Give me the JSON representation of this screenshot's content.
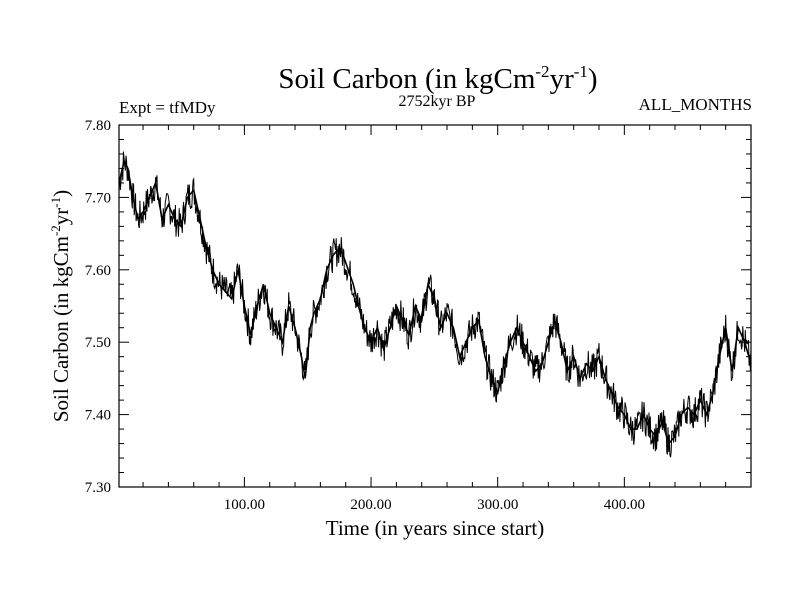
{
  "header": {
    "title_main": "Soil Carbon (in kgCm",
    "title_sup1": "-2",
    "title_mid": "yr",
    "title_sup2": "-1",
    "title_end": ")",
    "left_label": "Expt = tfMDy",
    "center_label": "2752kyr BP",
    "right_label": "ALL_MONTHS"
  },
  "chart_data": {
    "type": "line",
    "title": "Soil Carbon (in kgCm-2yr-1)",
    "xlabel": "Time (in years since start)",
    "ylabel": "Soil Carbon (in kgCm-2yr-1)",
    "ylabel_parts": {
      "main": "Soil Carbon (in kgCm",
      "sup1": "-2",
      "mid": "yr",
      "sup2": "-1",
      "end": ")"
    },
    "xlim": [
      1,
      500
    ],
    "ylim": [
      7.3,
      7.8
    ],
    "x_ticks": [
      100,
      200,
      300,
      400
    ],
    "x_tick_labels": [
      "100.00",
      "200.00",
      "300.00",
      "400.00"
    ],
    "y_ticks": [
      7.3,
      7.4,
      7.5,
      7.6,
      7.7,
      7.8
    ],
    "y_tick_labels": [
      "7.30",
      "7.40",
      "7.50",
      "7.60",
      "7.70",
      "7.80"
    ],
    "grid": false,
    "series": [
      {
        "color": "#000000",
        "x": [
          1,
          5,
          8,
          12,
          16,
          20,
          25,
          30,
          35,
          40,
          45,
          50,
          55,
          60,
          65,
          70,
          75,
          80,
          85,
          90,
          95,
          100,
          105,
          110,
          115,
          120,
          125,
          130,
          135,
          140,
          145,
          148,
          152,
          155,
          160,
          165,
          170,
          175,
          178,
          182,
          186,
          190,
          195,
          200,
          205,
          210,
          215,
          220,
          225,
          230,
          235,
          240,
          245,
          250,
          255,
          260,
          265,
          270,
          275,
          280,
          285,
          290,
          295,
          300,
          305,
          310,
          315,
          320,
          325,
          330,
          335,
          340,
          345,
          350,
          355,
          360,
          365,
          370,
          375,
          380,
          385,
          390,
          395,
          400,
          405,
          410,
          415,
          420,
          425,
          430,
          435,
          440,
          445,
          450,
          455,
          460,
          465,
          470,
          475,
          480,
          485,
          490,
          495,
          500
        ],
        "values": [
          7.72,
          7.75,
          7.74,
          7.7,
          7.67,
          7.68,
          7.7,
          7.72,
          7.67,
          7.69,
          7.67,
          7.66,
          7.7,
          7.71,
          7.67,
          7.63,
          7.6,
          7.58,
          7.57,
          7.56,
          7.6,
          7.55,
          7.51,
          7.55,
          7.58,
          7.54,
          7.52,
          7.5,
          7.55,
          7.52,
          7.48,
          7.45,
          7.52,
          7.54,
          7.56,
          7.6,
          7.62,
          7.63,
          7.62,
          7.6,
          7.58,
          7.55,
          7.52,
          7.5,
          7.52,
          7.49,
          7.52,
          7.55,
          7.53,
          7.51,
          7.55,
          7.53,
          7.58,
          7.56,
          7.52,
          7.54,
          7.52,
          7.48,
          7.5,
          7.52,
          7.53,
          7.48,
          7.45,
          7.43,
          7.47,
          7.5,
          7.52,
          7.5,
          7.48,
          7.46,
          7.47,
          7.5,
          7.53,
          7.5,
          7.46,
          7.48,
          7.45,
          7.47,
          7.46,
          7.48,
          7.45,
          7.43,
          7.41,
          7.4,
          7.38,
          7.38,
          7.4,
          7.38,
          7.37,
          7.39,
          7.36,
          7.37,
          7.4,
          7.41,
          7.4,
          7.42,
          7.4,
          7.43,
          7.48,
          7.52,
          7.46,
          7.52,
          7.5,
          7.47
        ]
      }
    ]
  }
}
